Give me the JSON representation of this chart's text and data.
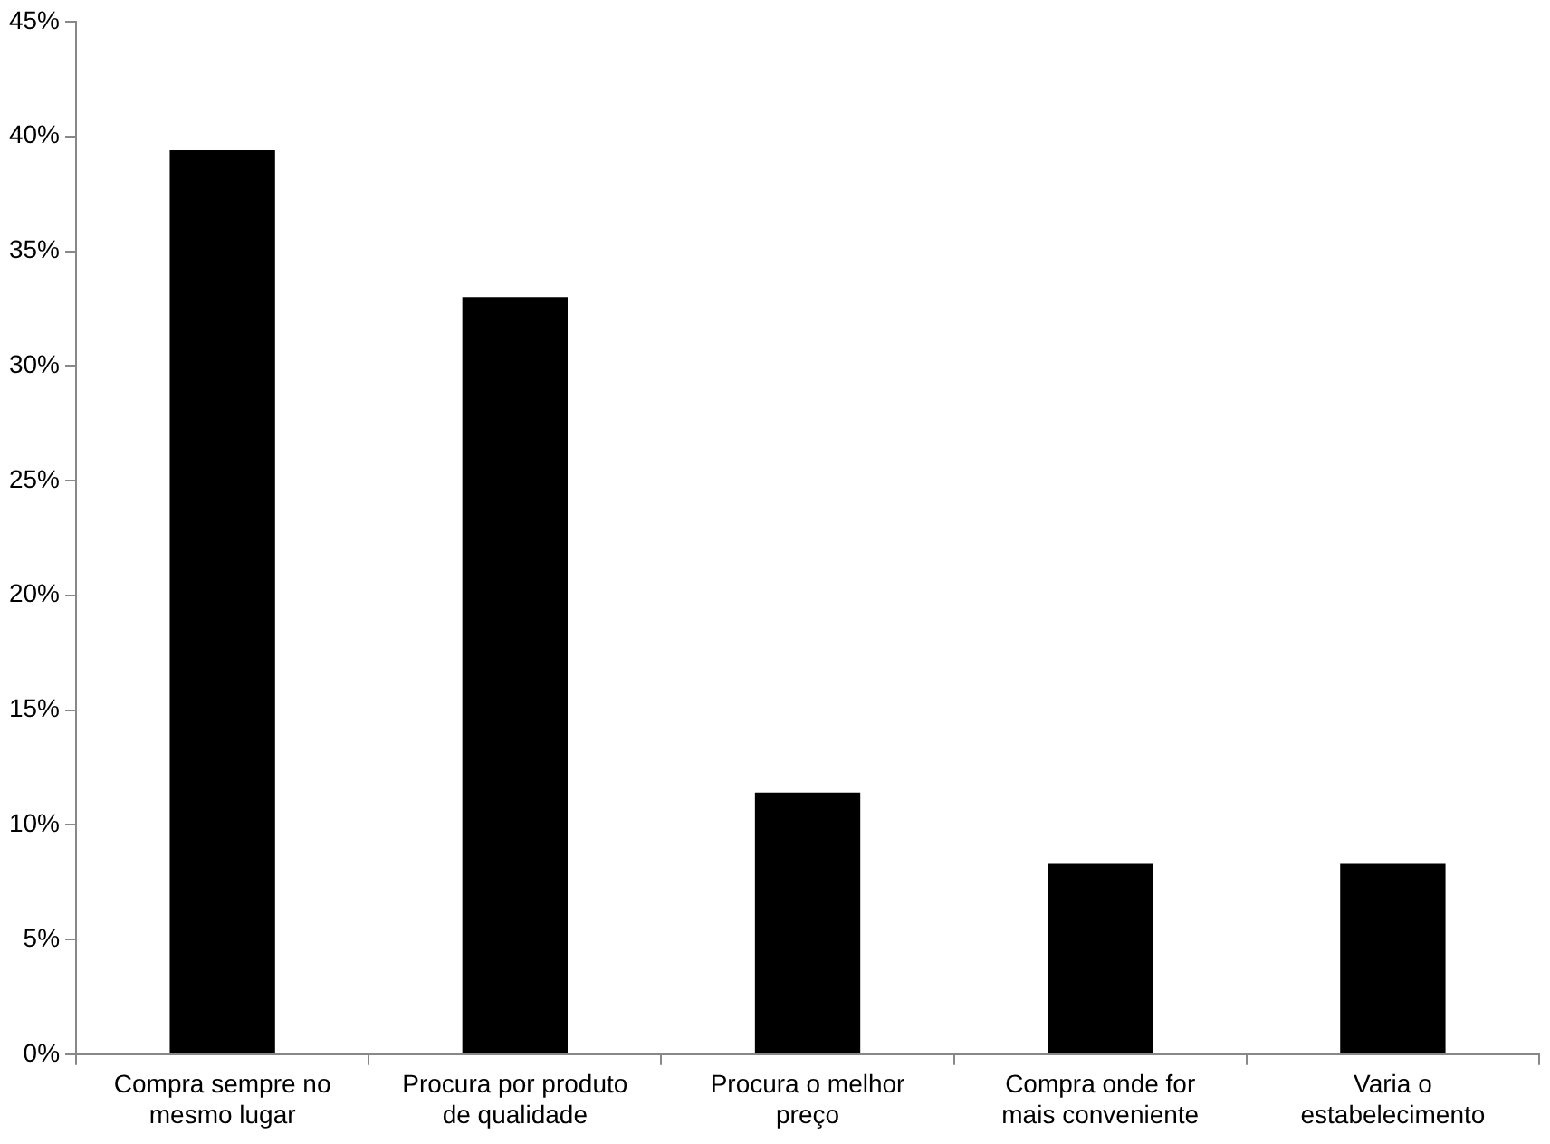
{
  "chart_data": {
    "type": "bar",
    "categories": [
      "Compra sempre no mesmo lugar",
      "Procura por produto de qualidade",
      "Procura o melhor preço",
      "Compra onde for mais conveniente",
      "Varia o estabelecimento"
    ],
    "values": [
      39.4,
      33.0,
      11.4,
      8.3,
      8.3
    ],
    "color": "#000000",
    "ylim": [
      0,
      45
    ],
    "yticks": [
      {
        "value": 0,
        "label": "0%"
      },
      {
        "value": 5,
        "label": "5%"
      },
      {
        "value": 10,
        "label": "10%"
      },
      {
        "value": 15,
        "label": "15%"
      },
      {
        "value": 20,
        "label": "20%"
      },
      {
        "value": 25,
        "label": "25%"
      },
      {
        "value": 30,
        "label": "30%"
      },
      {
        "value": 35,
        "label": "35%"
      },
      {
        "value": 40,
        "label": "40%"
      },
      {
        "value": 45,
        "label": "45%"
      }
    ],
    "grid": false,
    "legend": false
  }
}
